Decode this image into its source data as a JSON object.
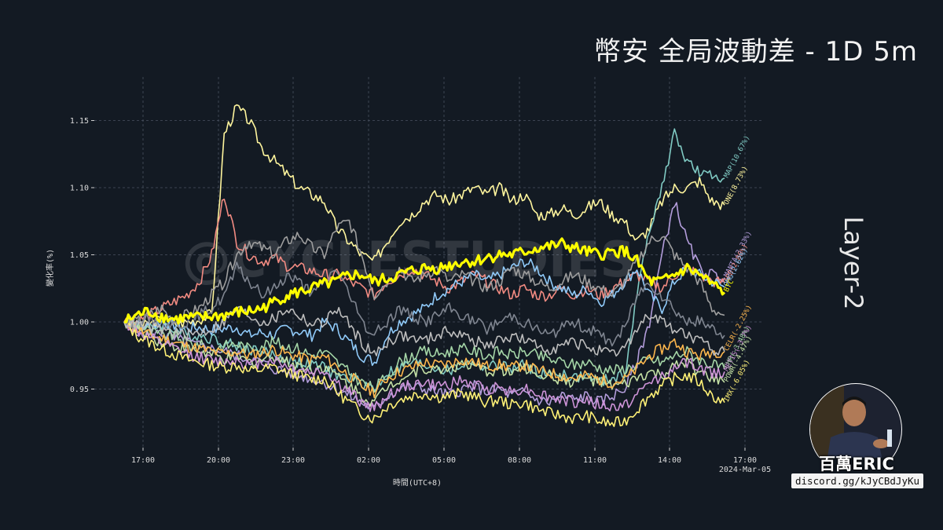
{
  "header": {
    "title": "幣安 全局波動差 - 1D 5m",
    "category": "Layer-2",
    "watermark": "@CYCLESTUDIES"
  },
  "branding": {
    "name": "百萬ERIC",
    "discord": "discord.gg/kJyCBdJyKu"
  },
  "colors": {
    "background": "#131a23",
    "btc_line": "#ffff00",
    "grid": "#4a5160"
  },
  "chart_data": {
    "type": "line",
    "xlabel": "時間(UTC+8)",
    "ylabel": "變化率(%)",
    "x_ticks": [
      "17:00",
      "20:00",
      "23:00",
      "02:00",
      "05:00",
      "08:00",
      "11:00",
      "14:00",
      "17:00"
    ],
    "x_date_label": "2024-Mar-05",
    "y_ticks": [
      "0.95",
      "1.00",
      "1.05",
      "1.10",
      "1.15"
    ],
    "ylim": [
      0.92,
      1.17
    ],
    "grid": true,
    "x": [
      "16:00",
      "16:30",
      "17:00",
      "17:30",
      "18:00",
      "18:30",
      "19:00",
      "19:30",
      "20:00",
      "20:30",
      "21:00",
      "21:30",
      "22:00",
      "22:30",
      "23:00",
      "23:30",
      "00:00",
      "00:30",
      "01:00",
      "01:30",
      "02:00",
      "02:30",
      "03:00",
      "03:30",
      "04:00",
      "04:30",
      "05:00",
      "05:30",
      "06:00",
      "06:30",
      "07:00",
      "07:30",
      "08:00",
      "08:30",
      "09:00",
      "09:30",
      "10:00",
      "10:30",
      "11:00",
      "11:30",
      "12:00",
      "12:30",
      "13:00",
      "13:30",
      "14:00",
      "14:30",
      "15:00",
      "15:30",
      "16:00"
    ],
    "series": [
      {
        "name": "ONE(8.73%)",
        "color": "#fff59d",
        "values": [
          1.0,
          0.996,
          0.998,
          1.002,
          0.998,
          1.0,
          1.002,
          1.006,
          1.14,
          1.16,
          1.15,
          1.13,
          1.12,
          1.11,
          1.1,
          1.095,
          1.09,
          1.07,
          1.06,
          1.05,
          1.045,
          1.06,
          1.075,
          1.08,
          1.09,
          1.095,
          1.09,
          1.095,
          1.1,
          1.095,
          1.1,
          1.09,
          1.095,
          1.08,
          1.08,
          1.085,
          1.08,
          1.085,
          1.09,
          1.08,
          1.075,
          1.06,
          1.07,
          1.09,
          1.1,
          1.1,
          1.105,
          1.09,
          1.087
        ]
      },
      {
        "name": "MAP(10.67%)",
        "color": "#80cbc4",
        "values": [
          1.0,
          0.997,
          0.995,
          0.998,
          0.995,
          0.99,
          0.99,
          0.988,
          0.985,
          0.982,
          0.98,
          0.978,
          0.975,
          0.972,
          0.97,
          0.968,
          0.966,
          0.96,
          0.958,
          0.955,
          0.95,
          0.962,
          0.965,
          0.97,
          0.968,
          0.966,
          0.963,
          0.968,
          0.97,
          0.966,
          0.968,
          0.965,
          0.968,
          0.963,
          0.96,
          0.962,
          0.958,
          0.96,
          0.955,
          0.958,
          0.96,
          1.02,
          1.07,
          1.1,
          1.14,
          1.12,
          1.11,
          1.108,
          1.107
        ]
      },
      {
        "name": "MANTA(3.33%)",
        "color": "#b39ddb",
        "values": [
          1.0,
          0.994,
          0.99,
          0.992,
          0.987,
          0.985,
          0.982,
          0.98,
          0.978,
          0.975,
          0.972,
          0.97,
          0.965,
          0.963,
          0.96,
          0.958,
          0.955,
          0.95,
          0.945,
          0.94,
          0.935,
          0.945,
          0.95,
          0.952,
          0.95,
          0.948,
          0.945,
          0.95,
          0.952,
          0.948,
          0.95,
          0.945,
          0.948,
          0.942,
          0.94,
          0.945,
          0.942,
          0.945,
          0.94,
          0.945,
          0.95,
          0.97,
          1.0,
          1.05,
          1.09,
          1.06,
          1.04,
          1.035,
          1.033
        ]
      },
      {
        "name": "ARB(2.86%)",
        "color": "#f28b82",
        "values": [
          1.0,
          1.0,
          1.005,
          1.01,
          1.015,
          1.02,
          1.03,
          1.05,
          1.095,
          1.06,
          1.05,
          1.045,
          1.048,
          1.042,
          1.04,
          1.038,
          1.035,
          1.035,
          1.03,
          1.025,
          1.02,
          1.03,
          1.035,
          1.04,
          1.035,
          1.03,
          1.025,
          1.03,
          1.035,
          1.03,
          1.025,
          1.02,
          1.025,
          1.02,
          1.02,
          1.025,
          1.02,
          1.025,
          1.02,
          1.025,
          1.03,
          1.035,
          1.03,
          1.025,
          1.035,
          1.04,
          1.035,
          1.03,
          1.029
        ]
      },
      {
        "name": "OMG(2.62%)",
        "color": "#90caf9",
        "values": [
          1.0,
          0.998,
          0.996,
          1.0,
          0.998,
          0.995,
          0.996,
          0.994,
          0.995,
          0.996,
          0.99,
          0.992,
          0.99,
          0.995,
          0.993,
          0.99,
          1.0,
          0.995,
          0.985,
          0.975,
          0.97,
          0.99,
          1.0,
          1.005,
          1.01,
          1.02,
          1.025,
          1.03,
          1.035,
          1.03,
          1.035,
          1.04,
          1.045,
          1.04,
          1.03,
          1.025,
          1.02,
          1.025,
          1.015,
          1.02,
          1.03,
          1.04,
          1.02,
          1.01,
          1.03,
          1.04,
          1.035,
          1.03,
          1.026
        ]
      },
      {
        "name": "BTC",
        "color": "#ffff00",
        "values": [
          1.0,
          1.005,
          1.008,
          1.004,
          1.002,
          1.003,
          1.003,
          1.004,
          1.005,
          1.007,
          1.008,
          1.01,
          1.015,
          1.02,
          1.022,
          1.025,
          1.028,
          1.03,
          1.035,
          1.035,
          1.03,
          1.032,
          1.035,
          1.038,
          1.04,
          1.04,
          1.042,
          1.045,
          1.045,
          1.048,
          1.05,
          1.05,
          1.052,
          1.055,
          1.056,
          1.058,
          1.055,
          1.052,
          1.05,
          1.052,
          1.053,
          1.045,
          1.03,
          1.03,
          1.035,
          1.04,
          1.035,
          1.028,
          1.022
        ]
      },
      {
        "name": "CHR(-3.48%)",
        "color": "#a5d6a7",
        "values": [
          1.0,
          0.998,
          0.993,
          0.99,
          0.99,
          0.985,
          0.983,
          0.98,
          0.982,
          0.984,
          0.98,
          0.983,
          0.985,
          0.982,
          0.98,
          0.975,
          0.978,
          0.97,
          0.962,
          0.955,
          0.95,
          0.96,
          0.97,
          0.975,
          0.978,
          0.976,
          0.978,
          0.98,
          0.978,
          0.975,
          0.978,
          0.975,
          0.978,
          0.975,
          0.972,
          0.97,
          0.968,
          0.97,
          0.966,
          0.964,
          0.965,
          0.968,
          0.972,
          0.97,
          0.975,
          0.978,
          0.972,
          0.968,
          0.965
        ]
      },
      {
        "name": "POWR(-4.47%)",
        "color": "#c5e1a5",
        "values": [
          1.0,
          0.996,
          0.99,
          0.985,
          0.982,
          0.98,
          0.978,
          0.975,
          0.972,
          0.974,
          0.97,
          0.972,
          0.975,
          0.97,
          0.968,
          0.965,
          0.967,
          0.96,
          0.953,
          0.945,
          0.94,
          0.952,
          0.958,
          0.962,
          0.966,
          0.964,
          0.966,
          0.968,
          0.966,
          0.963,
          0.965,
          0.962,
          0.966,
          0.962,
          0.96,
          0.957,
          0.955,
          0.958,
          0.955,
          0.952,
          0.953,
          0.958,
          0.962,
          0.96,
          0.966,
          0.97,
          0.962,
          0.958,
          0.955
        ]
      },
      {
        "name": "CELR(-2.25%)",
        "color": "#ffb74d",
        "values": [
          1.0,
          0.995,
          0.99,
          0.988,
          0.985,
          0.982,
          0.98,
          0.978,
          0.976,
          0.978,
          0.975,
          0.977,
          0.98,
          0.976,
          0.974,
          0.972,
          0.974,
          0.967,
          0.96,
          0.952,
          0.948,
          0.958,
          0.963,
          0.966,
          0.97,
          0.968,
          0.969,
          0.972,
          0.97,
          0.967,
          0.968,
          0.966,
          0.968,
          0.964,
          0.962,
          0.96,
          0.958,
          0.96,
          0.957,
          0.955,
          0.957,
          0.965,
          0.975,
          0.98,
          0.985,
          0.978,
          0.975,
          0.978,
          0.978
        ]
      },
      {
        "name": "METIS(-3.7%)",
        "color": "#ce93d8",
        "values": [
          1.0,
          0.993,
          0.988,
          0.984,
          0.98,
          0.976,
          0.974,
          0.971,
          0.97,
          0.972,
          0.968,
          0.97,
          0.972,
          0.967,
          0.965,
          0.962,
          0.964,
          0.955,
          0.948,
          0.94,
          0.935,
          0.945,
          0.95,
          0.953,
          0.955,
          0.952,
          0.954,
          0.956,
          0.953,
          0.95,
          0.952,
          0.948,
          0.951,
          0.947,
          0.944,
          0.942,
          0.94,
          0.942,
          0.938,
          0.936,
          0.938,
          0.945,
          0.955,
          0.96,
          0.965,
          0.97,
          0.965,
          0.962,
          0.963
        ]
      },
      {
        "name": "IMX(-6.05%)",
        "color": "#fff176",
        "values": [
          1.0,
          0.99,
          0.985,
          0.98,
          0.976,
          0.972,
          0.97,
          0.968,
          0.966,
          0.968,
          0.963,
          0.965,
          0.966,
          0.962,
          0.96,
          0.957,
          0.958,
          0.948,
          0.94,
          0.932,
          0.928,
          0.937,
          0.942,
          0.945,
          0.947,
          0.944,
          0.945,
          0.947,
          0.944,
          0.94,
          0.942,
          0.938,
          0.94,
          0.935,
          0.932,
          0.93,
          0.928,
          0.93,
          0.926,
          0.924,
          0.926,
          0.935,
          0.945,
          0.952,
          0.958,
          0.96,
          0.955,
          0.945,
          0.94
        ]
      },
      {
        "name": "",
        "color": "#9e9e9e",
        "values": [
          1.0,
          1.0,
          1.005,
          1.01,
          1.0,
          1.005,
          1.01,
          1.02,
          1.03,
          1.05,
          1.06,
          1.055,
          1.05,
          1.06,
          1.065,
          1.055,
          1.05,
          1.07,
          1.075,
          1.05,
          1.02,
          1.03,
          1.04,
          1.03,
          1.035,
          1.04,
          1.03,
          1.035,
          1.03,
          1.025,
          1.03,
          1.04,
          1.035,
          1.03,
          1.025,
          1.03,
          1.035,
          1.03,
          1.025,
          1.02,
          1.03,
          1.045,
          1.06,
          1.065,
          1.05,
          1.04,
          1.03,
          1.01,
          1.005
        ]
      },
      {
        "name": "",
        "color": "#7f8590",
        "values": [
          1.0,
          1.0,
          1.002,
          1.0,
          0.998,
          1.0,
          1.005,
          1.01,
          1.02,
          1.04,
          1.03,
          1.02,
          1.025,
          1.035,
          1.03,
          1.02,
          1.03,
          1.04,
          1.02,
          1.0,
          0.99,
          1.0,
          1.01,
          1.005,
          1.0,
          1.005,
          1.01,
          1.005,
          1.0,
          0.995,
          1.0,
          1.005,
          1.0,
          0.995,
          0.99,
          0.995,
          1.0,
          0.995,
          0.99,
          0.985,
          0.995,
          1.02,
          1.03,
          1.02,
          1.01,
          1.0,
          1.0,
          0.995,
          0.99
        ]
      },
      {
        "name": "",
        "color": "#bdbdbd",
        "values": [
          1.0,
          0.998,
          0.996,
          0.994,
          0.992,
          0.99,
          0.992,
          0.995,
          1.0,
          1.01,
          1.005,
          1.0,
          1.002,
          1.01,
          1.005,
          0.998,
          1.0,
          1.01,
          0.998,
          0.985,
          0.975,
          0.985,
          0.99,
          0.988,
          0.986,
          0.99,
          0.994,
          0.99,
          0.986,
          0.982,
          0.986,
          0.99,
          0.986,
          0.982,
          0.98,
          0.982,
          0.985,
          0.982,
          0.978,
          0.975,
          0.98,
          0.995,
          1.005,
          1.0,
          0.995,
          0.99,
          0.985,
          0.98,
          0.978
        ]
      }
    ]
  }
}
